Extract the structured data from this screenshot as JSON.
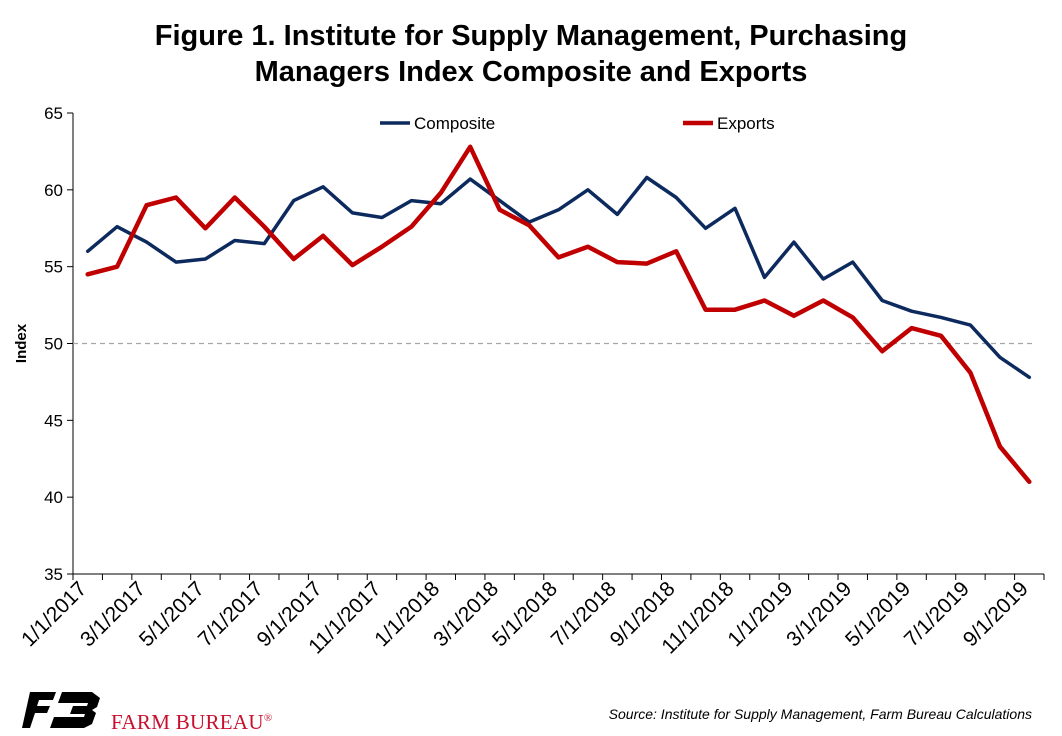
{
  "title_line1": "Figure 1. Institute for Supply Management, Purchasing",
  "title_line2": "Managers Index Composite and Exports",
  "source": "Source: Institute for Supply Management, Farm Bureau Calculations",
  "brand": "FARM BUREAU",
  "brand_mark": "®",
  "chart_data": {
    "type": "line",
    "ylabel": "Index",
    "ylim": [
      35,
      65
    ],
    "yticks": [
      "35",
      "40",
      "45",
      "50",
      "55",
      "60",
      "65"
    ],
    "reference_line": 50,
    "legend_position": "top",
    "x": [
      "1/1/2017",
      "2/1/2017",
      "3/1/2017",
      "4/1/2017",
      "5/1/2017",
      "6/1/2017",
      "7/1/2017",
      "8/1/2017",
      "9/1/2017",
      "10/1/2017",
      "11/1/2017",
      "12/1/2017",
      "1/1/2018",
      "2/1/2018",
      "3/1/2018",
      "4/1/2018",
      "5/1/2018",
      "6/1/2018",
      "7/1/2018",
      "8/1/2018",
      "9/1/2018",
      "10/1/2018",
      "11/1/2018",
      "12/1/2018",
      "1/1/2019",
      "2/1/2019",
      "3/1/2019",
      "4/1/2019",
      "5/1/2019",
      "6/1/2019",
      "7/1/2019",
      "8/1/2019",
      "9/1/2019"
    ],
    "xtick_labels": [
      "1/1/2017",
      "3/1/2017",
      "5/1/2017",
      "7/1/2017",
      "9/1/2017",
      "11/1/2017",
      "1/1/2018",
      "3/1/2018",
      "5/1/2018",
      "7/1/2018",
      "9/1/2018",
      "11/1/2018",
      "1/1/2019",
      "3/1/2019",
      "5/1/2019",
      "7/1/2019",
      "9/1/2019"
    ],
    "series": [
      {
        "name": "Composite",
        "color": "#0d2a5e",
        "values": [
          56.0,
          57.6,
          56.6,
          55.3,
          55.5,
          56.7,
          56.5,
          59.3,
          60.2,
          58.5,
          58.2,
          59.3,
          59.1,
          60.7,
          59.3,
          57.9,
          58.7,
          60.0,
          58.4,
          60.8,
          59.5,
          57.5,
          58.8,
          54.3,
          56.6,
          54.2,
          55.3,
          52.8,
          52.1,
          51.7,
          51.2,
          49.1,
          47.8
        ]
      },
      {
        "name": "Exports",
        "color": "#c00000",
        "values": [
          54.5,
          55.0,
          59.0,
          59.5,
          57.5,
          59.5,
          57.6,
          55.5,
          57.0,
          55.1,
          56.3,
          57.6,
          59.8,
          62.8,
          58.7,
          57.7,
          55.6,
          56.3,
          55.3,
          55.2,
          56.0,
          52.2,
          52.2,
          52.8,
          51.8,
          52.8,
          51.7,
          49.5,
          51.0,
          50.5,
          48.1,
          43.3,
          41.0
        ]
      }
    ]
  },
  "colors": {
    "composite": "#0d2a5e",
    "exports": "#c00000",
    "brand": "#c8102e",
    "reference": "#a6a6a6"
  }
}
